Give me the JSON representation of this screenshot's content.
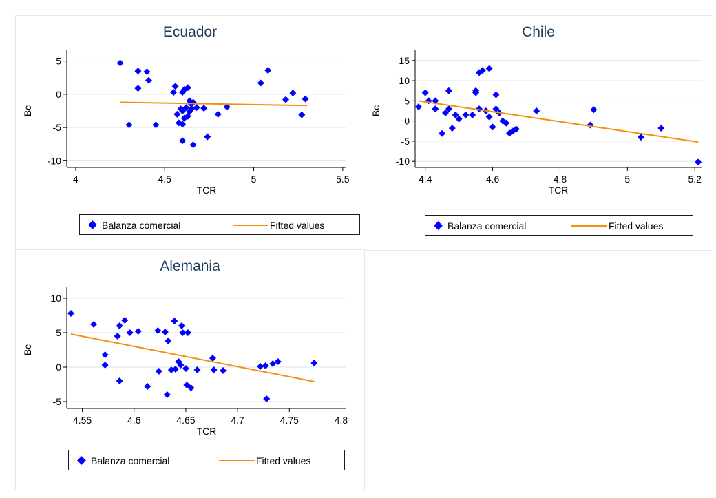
{
  "window": {
    "colors": {
      "marker": "#0000ff",
      "fit_line": "#f5900c",
      "title": "#1f3f5f",
      "grid": "#dce6ee",
      "panel_border": "#e3e9ef"
    }
  },
  "legend": {
    "marker_label": "Balanza comercial",
    "line_label": "Fitted values"
  },
  "chart_data": [
    {
      "type": "scatter",
      "title": "Ecuador",
      "xlabel": "TCR",
      "ylabel": "Bc",
      "xlim": [
        3.95,
        5.52
      ],
      "ylim": [
        -11,
        6
      ],
      "xticks": [
        4,
        4.5,
        5,
        5.5
      ],
      "yticks": [
        5,
        0,
        -5,
        -10
      ],
      "grid": true,
      "legend_position": "bottom",
      "series": [
        {
          "name": "Balanza comercial",
          "marker": "diamond",
          "points": [
            [
              4.25,
              4.7
            ],
            [
              4.35,
              3.5
            ],
            [
              4.4,
              3.4
            ],
            [
              4.35,
              0.9
            ],
            [
              4.41,
              2.1
            ],
            [
              4.3,
              -4.6
            ],
            [
              4.45,
              -4.6
            ],
            [
              4.56,
              1.2
            ],
            [
              4.55,
              0.3
            ],
            [
              4.6,
              0.3
            ],
            [
              4.61,
              0.7
            ],
            [
              4.63,
              1.0
            ],
            [
              4.57,
              -3.0
            ],
            [
              4.59,
              -2.2
            ],
            [
              4.6,
              -2.5
            ],
            [
              4.62,
              -2.0
            ],
            [
              4.64,
              -1.0
            ],
            [
              4.65,
              -1.5
            ],
            [
              4.66,
              -1.2
            ],
            [
              4.63,
              -3.3
            ],
            [
              4.61,
              -3.6
            ],
            [
              4.58,
              -4.3
            ],
            [
              4.6,
              -4.5
            ],
            [
              4.64,
              -2.6
            ],
            [
              4.65,
              -2.2
            ],
            [
              4.68,
              -2.0
            ],
            [
              4.72,
              -2.1
            ],
            [
              4.8,
              -3.0
            ],
            [
              4.85,
              -1.9
            ],
            [
              4.6,
              -7.0
            ],
            [
              4.66,
              -7.6
            ],
            [
              4.74,
              -6.4
            ],
            [
              5.04,
              1.7
            ],
            [
              5.08,
              3.6
            ],
            [
              5.18,
              -0.8
            ],
            [
              5.22,
              0.2
            ],
            [
              5.27,
              -3.1
            ],
            [
              5.29,
              -0.7
            ]
          ]
        },
        {
          "name": "Fitted values",
          "type": "line",
          "points": [
            [
              4.25,
              -1.2
            ],
            [
              5.3,
              -1.7
            ]
          ]
        }
      ]
    },
    {
      "type": "scatter",
      "title": "Chile",
      "xlabel": "TCR",
      "ylabel": "Bc",
      "xlim": [
        4.37,
        5.22
      ],
      "ylim": [
        -11.5,
        16.5
      ],
      "xticks": [
        4.4,
        4.6,
        4.8,
        5,
        5.2
      ],
      "yticks": [
        15,
        10,
        5,
        0,
        -5,
        -10
      ],
      "grid": true,
      "legend_position": "bottom",
      "series": [
        {
          "name": "Balanza comercial",
          "marker": "diamond",
          "points": [
            [
              4.38,
              3.5
            ],
            [
              4.4,
              7.0
            ],
            [
              4.41,
              5.0
            ],
            [
              4.43,
              5.0
            ],
            [
              4.43,
              3.0
            ],
            [
              4.45,
              -3.1
            ],
            [
              4.46,
              2.0
            ],
            [
              4.47,
              3.0
            ],
            [
              4.47,
              7.5
            ],
            [
              4.48,
              -1.8
            ],
            [
              4.49,
              1.5
            ],
            [
              4.5,
              0.5
            ],
            [
              4.52,
              1.5
            ],
            [
              4.54,
              1.5
            ],
            [
              4.55,
              7.0
            ],
            [
              4.55,
              7.5
            ],
            [
              4.56,
              3.0
            ],
            [
              4.56,
              12.0
            ],
            [
              4.57,
              12.5
            ],
            [
              4.58,
              2.5
            ],
            [
              4.59,
              13.0
            ],
            [
              4.59,
              1.0
            ],
            [
              4.6,
              -1.5
            ],
            [
              4.61,
              6.5
            ],
            [
              4.61,
              3.0
            ],
            [
              4.62,
              2.0
            ],
            [
              4.63,
              0.0
            ],
            [
              4.64,
              -0.5
            ],
            [
              4.65,
              -3.0
            ],
            [
              4.66,
              -2.5
            ],
            [
              4.67,
              -2.0
            ],
            [
              4.73,
              2.5
            ],
            [
              4.89,
              -1.0
            ],
            [
              4.9,
              2.8
            ],
            [
              5.04,
              -4.0
            ],
            [
              5.1,
              -1.8
            ],
            [
              5.21,
              -10.2
            ]
          ]
        },
        {
          "name": "Fitted values",
          "type": "line",
          "points": [
            [
              4.38,
              5.0
            ],
            [
              5.21,
              -5.2
            ]
          ]
        }
      ]
    },
    {
      "type": "scatter",
      "title": "Alemania",
      "xlabel": "TCR",
      "ylabel": "Bc",
      "xlim": [
        4.535,
        4.805
      ],
      "ylim": [
        -6,
        11
      ],
      "xticks": [
        4.55,
        4.6,
        4.65,
        4.7,
        4.75,
        4.8
      ],
      "yticks": [
        10,
        5,
        0,
        -5
      ],
      "grid": true,
      "legend_position": "bottom",
      "series": [
        {
          "name": "Balanza comercial",
          "marker": "diamond",
          "points": [
            [
              4.539,
              7.8
            ],
            [
              4.561,
              6.2
            ],
            [
              4.572,
              1.8
            ],
            [
              4.572,
              0.3
            ],
            [
              4.584,
              4.5
            ],
            [
              4.586,
              6.0
            ],
            [
              4.586,
              -2.0
            ],
            [
              4.591,
              6.8
            ],
            [
              4.596,
              5.0
            ],
            [
              4.604,
              5.2
            ],
            [
              4.613,
              -2.8
            ],
            [
              4.623,
              5.3
            ],
            [
              4.624,
              -0.6
            ],
            [
              4.63,
              5.1
            ],
            [
              4.632,
              -4.0
            ],
            [
              4.633,
              3.8
            ],
            [
              4.636,
              -0.4
            ],
            [
              4.639,
              6.7
            ],
            [
              4.64,
              -0.3
            ],
            [
              4.643,
              0.8
            ],
            [
              4.645,
              0.3
            ],
            [
              4.646,
              6.0
            ],
            [
              4.647,
              5.0
            ],
            [
              4.65,
              -0.2
            ],
            [
              4.652,
              5.0
            ],
            [
              4.651,
              -2.6
            ],
            [
              4.655,
              -3.0
            ],
            [
              4.661,
              -0.4
            ],
            [
              4.676,
              1.3
            ],
            [
              4.677,
              -0.4
            ],
            [
              4.686,
              -0.5
            ],
            [
              4.722,
              0.1
            ],
            [
              4.727,
              0.2
            ],
            [
              4.728,
              -4.6
            ],
            [
              4.734,
              0.5
            ],
            [
              4.739,
              0.8
            ],
            [
              4.774,
              0.6
            ]
          ]
        },
        {
          "name": "Fitted values",
          "type": "line",
          "points": [
            [
              4.539,
              4.8
            ],
            [
              4.774,
              -2.1
            ]
          ]
        }
      ]
    }
  ]
}
